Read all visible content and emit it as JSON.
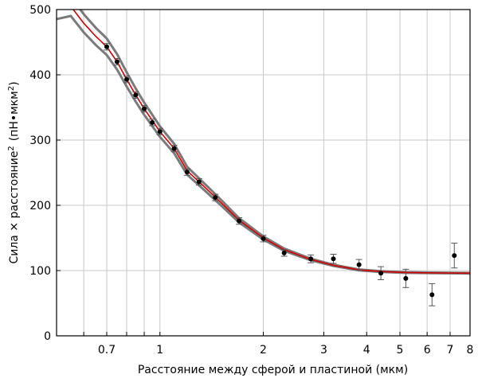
{
  "chart_data": {
    "type": "scatter",
    "title": "",
    "xlabel": "Расстояние между сферой и пластиной (мкм)",
    "ylabel_main": "Сила × расстояние",
    "ylabel_sup": "2",
    "ylabel_units": "(пН•мкм",
    "ylabel_units_sup": "2",
    "ylabel_units_close": ")",
    "x_scale": "log",
    "xlim": [
      0.5,
      8
    ],
    "ylim": [
      0,
      500
    ],
    "x_major_ticks": [
      1,
      2,
      3,
      4,
      5,
      6,
      7,
      8
    ],
    "x_tick_labels": [
      "0.7",
      "1",
      "2",
      "3",
      "4",
      "5",
      "6",
      "7",
      "8"
    ],
    "x_tick_values": [
      0.7,
      1,
      2,
      3,
      4,
      5,
      6,
      7,
      8
    ],
    "x_minor_gridlines": [
      0.6,
      0.7,
      0.8,
      0.9,
      1,
      2,
      3,
      4,
      5,
      6,
      7,
      8
    ],
    "y_ticks": [
      0,
      100,
      200,
      300,
      400,
      500
    ],
    "y_tick_labels": [
      "0",
      "100",
      "200",
      "300",
      "400",
      "500"
    ],
    "grid": true,
    "colors": {
      "points": "#000000",
      "error_bars": "#555555",
      "fit_line": "#d40000",
      "band": "#7a7a7a",
      "grid": "#c8c8c8",
      "frame": "#000000"
    },
    "points": [
      {
        "x": 0.7,
        "y": 443,
        "err": 5
      },
      {
        "x": 0.75,
        "y": 420,
        "err": 5
      },
      {
        "x": 0.8,
        "y": 393,
        "err": 5
      },
      {
        "x": 0.85,
        "y": 369,
        "err": 5
      },
      {
        "x": 0.9,
        "y": 348,
        "err": 5
      },
      {
        "x": 0.95,
        "y": 327,
        "err": 5
      },
      {
        "x": 1.0,
        "y": 313,
        "err": 5
      },
      {
        "x": 1.1,
        "y": 287,
        "err": 5
      },
      {
        "x": 1.2,
        "y": 251,
        "err": 5
      },
      {
        "x": 1.3,
        "y": 236,
        "err": 5
      },
      {
        "x": 1.45,
        "y": 212,
        "err": 5
      },
      {
        "x": 1.7,
        "y": 176,
        "err": 5
      },
      {
        "x": 2.0,
        "y": 149,
        "err": 5
      },
      {
        "x": 2.3,
        "y": 127,
        "err": 5
      },
      {
        "x": 2.75,
        "y": 118,
        "err": 6
      },
      {
        "x": 3.2,
        "y": 118,
        "err": 7
      },
      {
        "x": 3.8,
        "y": 109,
        "err": 8
      },
      {
        "x": 4.4,
        "y": 96,
        "err": 10
      },
      {
        "x": 5.2,
        "y": 88,
        "err": 14
      },
      {
        "x": 6.2,
        "y": 63,
        "err": 17
      },
      {
        "x": 7.2,
        "y": 123,
        "err": 19
      }
    ],
    "fit_curve": [
      {
        "x": 0.5,
        "y": 500
      },
      {
        "x": 0.55,
        "y": 505
      },
      {
        "x": 0.6,
        "y": 479
      },
      {
        "x": 0.65,
        "y": 459
      },
      {
        "x": 0.7,
        "y": 443
      },
      {
        "x": 0.75,
        "y": 420
      },
      {
        "x": 0.8,
        "y": 393
      },
      {
        "x": 0.85,
        "y": 369
      },
      {
        "x": 0.9,
        "y": 348
      },
      {
        "x": 1.0,
        "y": 313
      },
      {
        "x": 1.1,
        "y": 287
      },
      {
        "x": 1.2,
        "y": 253
      },
      {
        "x": 1.3,
        "y": 236
      },
      {
        "x": 1.5,
        "y": 205
      },
      {
        "x": 1.7,
        "y": 177
      },
      {
        "x": 2.0,
        "y": 150
      },
      {
        "x": 2.3,
        "y": 132
      },
      {
        "x": 2.75,
        "y": 117
      },
      {
        "x": 3.2,
        "y": 108
      },
      {
        "x": 3.8,
        "y": 101
      },
      {
        "x": 4.4,
        "y": 98.5
      },
      {
        "x": 5.2,
        "y": 97
      },
      {
        "x": 6.2,
        "y": 96.5
      },
      {
        "x": 7.2,
        "y": 96.2
      },
      {
        "x": 8.0,
        "y": 96
      }
    ]
  }
}
